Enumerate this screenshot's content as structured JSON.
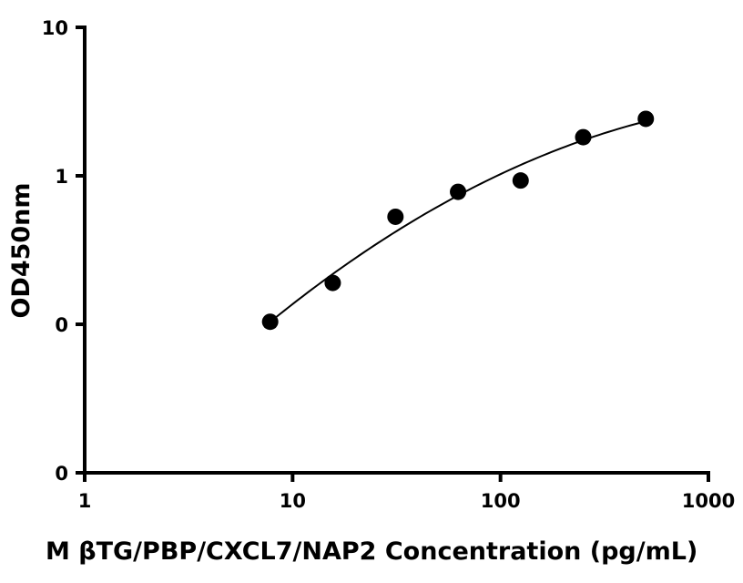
{
  "chart_data": {
    "type": "scatter",
    "title": "",
    "xlabel": "M βTG/PBP/CXCL7/NAP2 Concentration (pg/mL)",
    "ylabel": "OD450nm",
    "x_scale": "log",
    "y_scale": "log",
    "xlim": [
      1,
      1000
    ],
    "ylim": [
      0.01,
      10
    ],
    "x_ticks": [
      {
        "value": 1,
        "label": "1"
      },
      {
        "value": 10,
        "label": "10"
      },
      {
        "value": 100,
        "label": "100"
      },
      {
        "value": 1000,
        "label": "1000"
      }
    ],
    "y_ticks": [
      {
        "value": 0.01,
        "label": "0"
      },
      {
        "value": 0.1,
        "label": "0"
      },
      {
        "value": 1,
        "label": "1"
      },
      {
        "value": 10,
        "label": "10"
      }
    ],
    "series": [
      {
        "color": "#000000",
        "x": [
          7.8,
          15.6,
          31.25,
          62.5,
          125,
          250,
          500
        ],
        "y": [
          0.104,
          0.19,
          0.53,
          0.78,
          0.93,
          1.82,
          2.42
        ]
      }
    ],
    "fit_curve": true,
    "grid": false,
    "legend": "none"
  }
}
